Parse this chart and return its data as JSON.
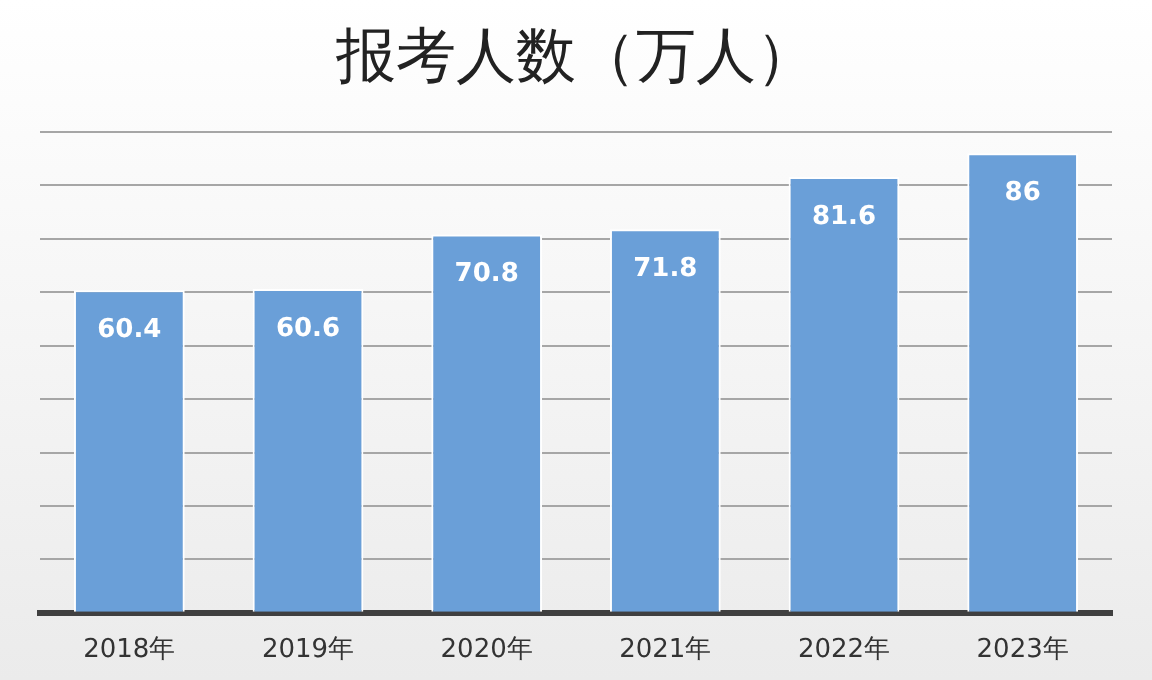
{
  "chart_data": {
    "type": "bar",
    "title": "报考人数（万人）",
    "categories": [
      "2018年",
      "2019年",
      "2020年",
      "2021年",
      "2022年",
      "2023年"
    ],
    "values": [
      60.4,
      60.6,
      70.8,
      71.8,
      81.6,
      86
    ],
    "color": "#6a9fd8",
    "ylim": [
      0,
      90
    ],
    "yticks": [
      {
        "value": 0,
        "label": null
      },
      {
        "value": 10,
        "label": null
      },
      {
        "value": 20,
        "label": null
      },
      {
        "value": 30,
        "label": null
      },
      {
        "value": 40,
        "label": null
      },
      {
        "value": 50,
        "label": null
      },
      {
        "value": 60,
        "label": null
      },
      {
        "value": 70,
        "label": null
      },
      {
        "value": 80,
        "label": null
      },
      {
        "value": 90,
        "label": null
      }
    ],
    "grid": "y",
    "data_labels": true,
    "tick_labels": "x"
  }
}
